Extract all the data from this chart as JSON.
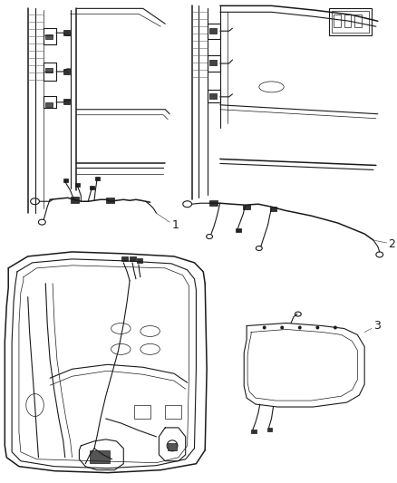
{
  "background_color": "#ffffff",
  "line_color": "#1a1a1a",
  "figure_width": 4.38,
  "figure_height": 5.33,
  "dpi": 100,
  "label_1": "1",
  "label_2": "2",
  "label_3": "3",
  "label_fontsize": 9,
  "gray_light": "#cccccc",
  "gray_mid": "#888888",
  "gray_dark": "#444444"
}
